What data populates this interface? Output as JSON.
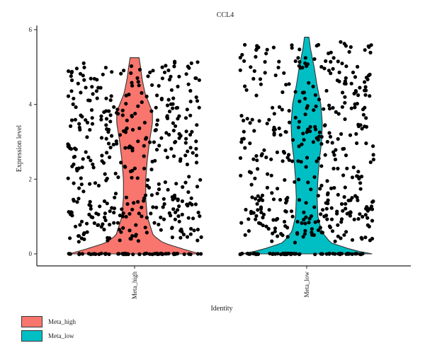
{
  "chart_data": {
    "type": "violin",
    "title": "CCL4",
    "xlabel": "Identity",
    "ylabel": "Expression level",
    "ylim": [
      0,
      6
    ],
    "yticks": [
      0,
      2,
      4,
      6
    ],
    "categories": [
      "Meta_high",
      "Meta_low"
    ],
    "grid": false,
    "legend_placement": "bottom-left",
    "series": [
      {
        "name": "Meta_high",
        "color": "#F8766D",
        "max": 5.25,
        "density_profile": [
          [
            0.0,
            0.88
          ],
          [
            0.1,
            0.7
          ],
          [
            0.3,
            0.38
          ],
          [
            0.5,
            0.25
          ],
          [
            1.0,
            0.17
          ],
          [
            1.5,
            0.15
          ],
          [
            2.0,
            0.15
          ],
          [
            2.5,
            0.17
          ],
          [
            3.0,
            0.2
          ],
          [
            3.5,
            0.24
          ],
          [
            3.8,
            0.24
          ],
          [
            4.0,
            0.2
          ],
          [
            4.3,
            0.14
          ],
          [
            4.7,
            0.1
          ],
          [
            5.0,
            0.08
          ],
          [
            5.25,
            0.06
          ]
        ]
      },
      {
        "name": "Meta_low",
        "color": "#00BFC4",
        "max": 5.8,
        "density_profile": [
          [
            0.0,
            0.88
          ],
          [
            0.1,
            0.62
          ],
          [
            0.3,
            0.32
          ],
          [
            0.6,
            0.2
          ],
          [
            1.0,
            0.15
          ],
          [
            1.5,
            0.14
          ],
          [
            2.0,
            0.15
          ],
          [
            2.5,
            0.17
          ],
          [
            3.0,
            0.2
          ],
          [
            3.5,
            0.21
          ],
          [
            4.0,
            0.19
          ],
          [
            4.5,
            0.14
          ],
          [
            5.0,
            0.1
          ],
          [
            5.5,
            0.05
          ],
          [
            5.8,
            0.03
          ]
        ]
      }
    ]
  },
  "legend": {
    "items": [
      {
        "label": "Meta_high",
        "color": "#F8766D"
      },
      {
        "label": "Meta_low",
        "color": "#00BFC4"
      }
    ]
  }
}
